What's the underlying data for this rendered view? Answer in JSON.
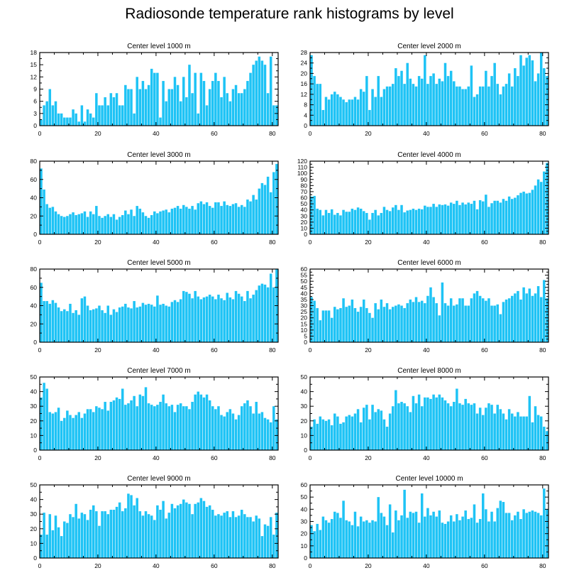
{
  "title": "Radiosonde temperature rank histograms by level",
  "bar_color": "#1EC3F5",
  "chart_data": [
    {
      "type": "bar",
      "title": "Center level 1000 m",
      "xlim": [
        0,
        82
      ],
      "ylim": [
        0,
        18
      ],
      "yticks": [
        0,
        3,
        6,
        9,
        12,
        15,
        18
      ],
      "xticks": [
        0,
        20,
        40,
        60,
        80
      ],
      "values": [
        1.5,
        5,
        6,
        9,
        5,
        6,
        3,
        3,
        2,
        2,
        2,
        4,
        3,
        1,
        5,
        1,
        4,
        3,
        2,
        8,
        5,
        5,
        7,
        5,
        8,
        7,
        8,
        5,
        5,
        10,
        9,
        9,
        3,
        12,
        9,
        11,
        9,
        10,
        14,
        13,
        13,
        2,
        11,
        6,
        9,
        9,
        12,
        10,
        6,
        12,
        7,
        15,
        8,
        13,
        3,
        13,
        11,
        5,
        9,
        11,
        13,
        11,
        7,
        12,
        8,
        6,
        9,
        10,
        8,
        8,
        9,
        11,
        13,
        15,
        16,
        17,
        16,
        15,
        8,
        17,
        5,
        5
      ]
    },
    {
      "type": "bar",
      "title": "Center level 2000 m",
      "xlim": [
        0,
        82
      ],
      "ylim": [
        0,
        28
      ],
      "yticks": [
        0,
        4,
        8,
        12,
        16,
        20,
        24,
        28
      ],
      "xticks": [
        0,
        20,
        40,
        60,
        80
      ],
      "values": [
        27,
        19,
        16,
        16,
        6,
        11,
        10,
        12,
        13,
        12,
        11,
        10,
        9,
        10,
        10,
        11,
        10,
        14,
        13,
        19,
        6,
        14,
        11,
        19,
        11,
        14,
        15,
        15,
        16,
        22,
        19,
        21,
        16,
        24,
        18,
        16,
        15,
        19,
        18,
        27,
        16,
        19,
        20,
        16,
        18,
        17,
        24,
        19,
        21,
        17,
        15,
        15,
        14,
        14,
        15,
        23,
        11,
        12,
        15,
        15,
        21,
        15,
        19,
        24,
        16,
        12,
        15,
        16,
        20,
        15,
        22,
        19,
        27,
        23,
        26,
        27,
        25,
        17,
        20,
        28,
        22,
        19
      ]
    },
    {
      "type": "bar",
      "title": "Center level 3000 m",
      "xlim": [
        0,
        82
      ],
      "ylim": [
        0,
        80
      ],
      "yticks": [
        0,
        20,
        40,
        60,
        80
      ],
      "xticks": [
        0,
        20,
        40,
        60,
        80
      ],
      "values": [
        72,
        49,
        33,
        29,
        30,
        25,
        22,
        20,
        19,
        20,
        22,
        24,
        21,
        22,
        23,
        25,
        19,
        25,
        22,
        31,
        20,
        18,
        20,
        22,
        19,
        22,
        16,
        19,
        21,
        26,
        22,
        27,
        20,
        31,
        28,
        24,
        20,
        18,
        21,
        25,
        23,
        25,
        26,
        27,
        24,
        28,
        29,
        31,
        28,
        32,
        30,
        28,
        31,
        27,
        34,
        36,
        33,
        35,
        31,
        29,
        35,
        35,
        31,
        36,
        32,
        31,
        33,
        34,
        30,
        32,
        30,
        38,
        36,
        43,
        38,
        50,
        56,
        54,
        63,
        46,
        68,
        77
      ]
    },
    {
      "type": "bar",
      "title": "Center level 4000 m",
      "xlim": [
        0,
        82
      ],
      "ylim": [
        0,
        120
      ],
      "yticks": [
        0,
        10,
        20,
        30,
        40,
        50,
        60,
        70,
        80,
        90,
        100,
        110,
        120
      ],
      "xticks": [
        0,
        20,
        40,
        60,
        80
      ],
      "values": [
        62,
        63,
        42,
        40,
        31,
        40,
        35,
        41,
        32,
        35,
        31,
        40,
        37,
        37,
        42,
        40,
        44,
        42,
        38,
        35,
        24,
        35,
        40,
        31,
        35,
        45,
        40,
        38,
        44,
        48,
        40,
        48,
        36,
        39,
        40,
        42,
        40,
        42,
        41,
        47,
        45,
        45,
        50,
        45,
        49,
        48,
        49,
        47,
        52,
        50,
        55,
        48,
        52,
        49,
        52,
        50,
        55,
        41,
        56,
        54,
        65,
        45,
        51,
        55,
        55,
        52,
        58,
        55,
        62,
        58,
        60,
        64,
        68,
        70,
        67,
        68,
        73,
        80,
        90,
        86,
        103,
        117
      ]
    },
    {
      "type": "bar",
      "title": "Center level 5000 m",
      "xlim": [
        0,
        82
      ],
      "ylim": [
        0,
        80
      ],
      "yticks": [
        0,
        20,
        40,
        60,
        80
      ],
      "xticks": [
        0,
        20,
        40,
        60,
        80
      ],
      "values": [
        65,
        45,
        45,
        42,
        46,
        43,
        38,
        34,
        36,
        34,
        42,
        32,
        35,
        30,
        48,
        50,
        40,
        35,
        36,
        37,
        40,
        35,
        32,
        40,
        30,
        36,
        33,
        38,
        39,
        42,
        38,
        37,
        45,
        38,
        39,
        43,
        41,
        42,
        41,
        39,
        51,
        41,
        42,
        40,
        39,
        44,
        46,
        44,
        47,
        56,
        55,
        53,
        48,
        56,
        50,
        47,
        49,
        50,
        52,
        50,
        47,
        52,
        48,
        46,
        54,
        49,
        47,
        56,
        53,
        50,
        45,
        56,
        48,
        52,
        57,
        62,
        64,
        63,
        60,
        75,
        60,
        80
      ]
    },
    {
      "type": "bar",
      "title": "Center level 6000 m",
      "xlim": [
        0,
        82
      ],
      "ylim": [
        0,
        60
      ],
      "yticks": [
        0,
        5,
        10,
        15,
        20,
        25,
        30,
        35,
        40,
        45,
        50,
        55,
        60
      ],
      "xticks": [
        0,
        20,
        40,
        60,
        80
      ],
      "values": [
        37,
        34,
        28,
        18,
        26,
        26,
        26,
        20,
        29,
        27,
        28,
        36,
        29,
        30,
        35,
        28,
        25,
        29,
        35,
        28,
        24,
        20,
        32,
        27,
        35,
        29,
        32,
        27,
        29,
        30,
        31,
        30,
        28,
        32,
        35,
        33,
        37,
        33,
        34,
        32,
        38,
        45,
        37,
        32,
        22,
        49,
        32,
        30,
        36,
        30,
        31,
        36,
        36,
        30,
        30,
        36,
        40,
        42,
        38,
        36,
        34,
        36,
        30,
        30,
        31,
        23,
        33,
        35,
        36,
        38,
        40,
        42,
        35,
        45,
        40,
        44,
        38,
        40,
        46,
        37,
        51,
        36
      ]
    },
    {
      "type": "bar",
      "title": "Center level 7000 m",
      "xlim": [
        0,
        82
      ],
      "ylim": [
        0,
        50
      ],
      "yticks": [
        0,
        10,
        20,
        30,
        40,
        50
      ],
      "xticks": [
        0,
        20,
        40,
        60,
        80
      ],
      "values": [
        36,
        46,
        42,
        26,
        25,
        26,
        29,
        20,
        22,
        27,
        24,
        22,
        24,
        26,
        22,
        25,
        28,
        28,
        26,
        30,
        29,
        28,
        33,
        27,
        33,
        34,
        36,
        35,
        42,
        31,
        32,
        34,
        37,
        30,
        38,
        37,
        43,
        32,
        31,
        30,
        31,
        33,
        38,
        32,
        30,
        31,
        26,
        31,
        32,
        30,
        30,
        28,
        33,
        38,
        40,
        38,
        36,
        38,
        34,
        30,
        28,
        30,
        24,
        23,
        26,
        28,
        25,
        21,
        24,
        30,
        32,
        34,
        30,
        25,
        33,
        25,
        26,
        22,
        21,
        19,
        30,
        21
      ]
    },
    {
      "type": "bar",
      "title": "Center level 8000 m",
      "xlim": [
        0,
        82
      ],
      "ylim": [
        0,
        50
      ],
      "yticks": [
        0,
        10,
        20,
        30,
        40,
        50
      ],
      "xticks": [
        0,
        20,
        40,
        60,
        80
      ],
      "values": [
        16,
        21,
        18,
        23,
        21,
        20,
        21,
        17,
        25,
        23,
        18,
        19,
        23,
        24,
        23,
        25,
        28,
        19,
        29,
        31,
        21,
        31,
        26,
        28,
        27,
        21,
        16,
        25,
        30,
        41,
        32,
        33,
        32,
        30,
        26,
        37,
        32,
        38,
        30,
        36,
        36,
        35,
        38,
        36,
        38,
        36,
        34,
        32,
        30,
        33,
        42,
        32,
        31,
        35,
        32,
        31,
        32,
        25,
        29,
        24,
        29,
        32,
        31,
        25,
        31,
        28,
        25,
        21,
        28,
        25,
        23,
        26,
        23,
        23,
        23,
        37,
        19,
        30,
        24,
        23,
        16,
        13
      ]
    },
    {
      "type": "bar",
      "title": "Center level 9000 m",
      "xlim": [
        0,
        82
      ],
      "ylim": [
        0,
        50
      ],
      "yticks": [
        0,
        10,
        20,
        30,
        40,
        50
      ],
      "xticks": [
        0,
        20,
        40,
        60,
        80
      ],
      "values": [
        16,
        31,
        16,
        30,
        19,
        29,
        21,
        15,
        25,
        24,
        30,
        28,
        37,
        27,
        31,
        30,
        26,
        33,
        36,
        32,
        22,
        32,
        32,
        30,
        33,
        33,
        35,
        38,
        32,
        34,
        44,
        43,
        36,
        41,
        32,
        29,
        32,
        30,
        29,
        26,
        36,
        33,
        39,
        27,
        31,
        37,
        34,
        36,
        37,
        40,
        38,
        37,
        30,
        37,
        38,
        41,
        39,
        35,
        36,
        33,
        29,
        30,
        29,
        31,
        32,
        28,
        32,
        28,
        29,
        33,
        30,
        28,
        28,
        25,
        29,
        27,
        15,
        23,
        22,
        28,
        16,
        31
      ]
    },
    {
      "type": "bar",
      "title": "Center level 10000 m",
      "xlim": [
        0,
        82
      ],
      "ylim": [
        0,
        60
      ],
      "yticks": [
        0,
        10,
        20,
        30,
        40,
        50,
        60
      ],
      "xticks": [
        0,
        20,
        40,
        60,
        80
      ],
      "values": [
        27,
        22,
        28,
        23,
        34,
        31,
        29,
        32,
        38,
        37,
        33,
        47,
        31,
        30,
        27,
        38,
        26,
        34,
        30,
        31,
        29,
        31,
        30,
        50,
        37,
        34,
        27,
        44,
        21,
        39,
        31,
        35,
        56,
        33,
        38,
        37,
        38,
        29,
        53,
        34,
        41,
        35,
        38,
        34,
        39,
        29,
        28,
        30,
        35,
        30,
        36,
        31,
        34,
        39,
        32,
        33,
        44,
        29,
        32,
        53,
        40,
        30,
        38,
        30,
        41,
        47,
        46,
        37,
        37,
        31,
        35,
        38,
        32,
        40,
        37,
        38,
        39,
        38,
        37,
        35,
        57,
        40
      ]
    }
  ]
}
